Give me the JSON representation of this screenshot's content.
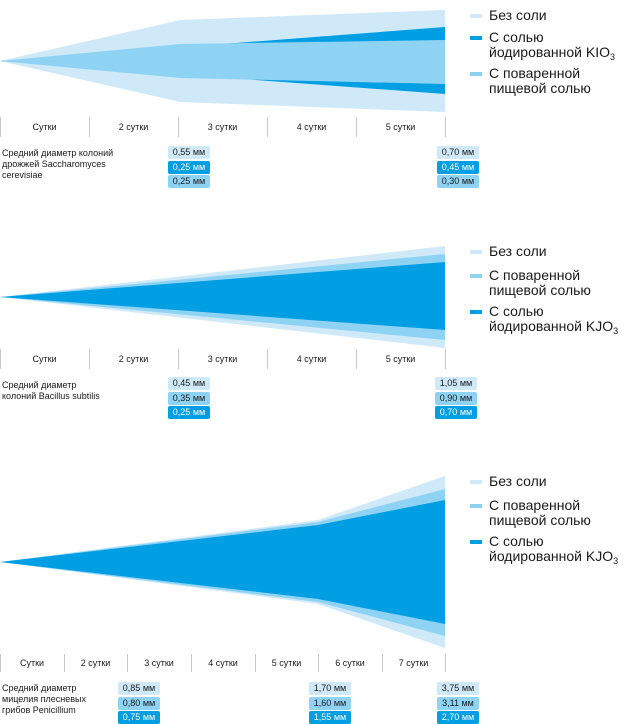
{
  "colors": {
    "no_salt": "#cfe9f8",
    "table_salt": "#8fd3f4",
    "iodized": "#009fe3",
    "tick": "#c8c8c8"
  },
  "chart_data": [
    {
      "type": "area",
      "x_labels": [
        "Сутки",
        "2 сутки",
        "3 сутки",
        "4 сутки",
        "5 сутки"
      ],
      "legend": [
        {
          "name": "Без соли",
          "color_key": "no_salt",
          "sub": ""
        },
        {
          "name": "С солью\nйодированной KIO",
          "color_key": "iodized",
          "sub": "3"
        },
        {
          "name": "С поваренной\nпищевой солью",
          "color_key": "table_salt",
          "sub": ""
        }
      ],
      "caption": "Средний диаметр колоний\nдрожжей Saccharomyces\ncerevisiae",
      "series": [
        {
          "name": "Без соли",
          "color_key": "no_salt",
          "values": {
            "1": 0.55,
            "5": 0.7
          }
        },
        {
          "name": "С солью йодированной KIO3",
          "color_key": "iodized",
          "values": {
            "1": 0.25,
            "5": 0.45
          }
        },
        {
          "name": "С поваренной пищевой солью",
          "color_key": "table_salt",
          "values": {
            "1": 0.25,
            "5": 0.3
          }
        }
      ],
      "value_labels": [
        {
          "x": 1,
          "items": [
            "0,55 мм",
            "0,25 мм",
            "0,25 мм"
          ]
        },
        {
          "x": 5,
          "items": [
            "0,70 мм",
            "0,45 мм",
            "0,30 мм"
          ]
        }
      ],
      "y_unit": "мм"
    },
    {
      "type": "area",
      "x_labels": [
        "Сутки",
        "2 сутки",
        "3 сутки",
        "4 сутки",
        "5 сутки"
      ],
      "legend": [
        {
          "name": "Без соли",
          "color_key": "no_salt",
          "sub": ""
        },
        {
          "name": "С поваренной\nпищевой солью",
          "color_key": "table_salt",
          "sub": ""
        },
        {
          "name": "С солью\nйодированной KJO",
          "color_key": "iodized",
          "sub": "3"
        }
      ],
      "caption": "Средний диаметр\nколоний Bacillus subtilis",
      "series": [
        {
          "name": "Без соли",
          "color_key": "no_salt",
          "values": {
            "2": 0.45,
            "5": 1.05
          }
        },
        {
          "name": "С поваренной пищевой солью",
          "color_key": "table_salt",
          "values": {
            "2": 0.35,
            "5": 0.9
          }
        },
        {
          "name": "С солью йодированной KJO3",
          "color_key": "iodized",
          "values": {
            "2": 0.25,
            "5": 0.7
          }
        }
      ],
      "value_labels": [
        {
          "x": 2,
          "items": [
            "0,45 мм",
            "0,35 мм",
            "0,25 мм"
          ]
        },
        {
          "x": 5,
          "items": [
            "1,05 мм",
            "0,90 мм",
            "0,70 мм"
          ]
        }
      ],
      "y_unit": "мм"
    },
    {
      "type": "area",
      "x_labels": [
        "Сутки",
        "2 сутки",
        "3 сутки",
        "4 сутки",
        "5 сутки",
        "6 сутки",
        "7 сутки"
      ],
      "legend": [
        {
          "name": "Без соли",
          "color_key": "no_salt",
          "sub": ""
        },
        {
          "name": "С поваренной\nпищевой солью",
          "color_key": "table_salt",
          "sub": ""
        },
        {
          "name": "С солью\nйодированной KJO",
          "color_key": "iodized",
          "sub": "3"
        }
      ],
      "caption": "Средний диаметр\nмицелия плесневых\nгрибов Penicillium",
      "series": [
        {
          "name": "Без соли",
          "color_key": "no_salt",
          "values": {
            "3": 0.85,
            "6": 1.7,
            "7": 3.75
          }
        },
        {
          "name": "С поваренной пищевой солью",
          "color_key": "table_salt",
          "values": {
            "3": 0.8,
            "6": 1.6,
            "7": 3.11
          }
        },
        {
          "name": "С солью йодированной KJO3",
          "color_key": "iodized",
          "values": {
            "3": 0.75,
            "6": 1.55,
            "7": 2.7
          }
        }
      ],
      "value_labels": [
        {
          "x": 3,
          "items": [
            "0,85 мм",
            "0,80 мм",
            "0,75 мм"
          ]
        },
        {
          "x": 6,
          "items": [
            "1,70 мм",
            "1,60 мм",
            "1,55 мм"
          ]
        },
        {
          "x": 7,
          "items": [
            "3,75 мм",
            "3,11 мм",
            "2,70 мм"
          ]
        }
      ],
      "y_unit": "мм"
    }
  ]
}
